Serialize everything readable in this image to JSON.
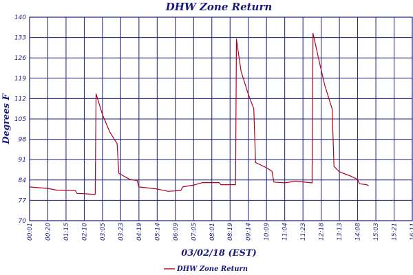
{
  "chart_data": {
    "type": "line",
    "title": "DHW Zone Return",
    "xlabel": "03/02/18 (EST)",
    "ylabel": "Degrees F",
    "ylim": [
      70,
      140
    ],
    "yticks": [
      "70",
      "77",
      "84",
      "91",
      "98",
      "105",
      "112",
      "119",
      "126",
      "133",
      "140"
    ],
    "xticks": [
      "00:01",
      "00:20",
      "01:15",
      "02:10",
      "03:05",
      "03:23",
      "04:19",
      "05:14",
      "06:09",
      "07:05",
      "08:01",
      "08:19",
      "09:14",
      "10:09",
      "11:04",
      "11:23",
      "12:18",
      "13:13",
      "14:08",
      "15:03",
      "15:21",
      "16:11"
    ],
    "grid": true,
    "colors": {
      "series": "#b00020",
      "grid": "#1a1a7a",
      "text": "#1a1a7a"
    },
    "series": [
      {
        "name": "DHW Zone Return",
        "points": [
          [
            0,
            81.6
          ],
          [
            1,
            81.1
          ],
          [
            1.5,
            80.5
          ],
          [
            2.5,
            80.4
          ],
          [
            2.6,
            79.4
          ],
          [
            3.2,
            79.2
          ],
          [
            3.6,
            79.0
          ],
          [
            3.65,
            113.6
          ],
          [
            4.0,
            106.5
          ],
          [
            4.4,
            100.5
          ],
          [
            4.8,
            96.5
          ],
          [
            4.9,
            86.3
          ],
          [
            5.5,
            84.2
          ],
          [
            5.9,
            83.8
          ],
          [
            6.0,
            81.6
          ],
          [
            7.0,
            80.9
          ],
          [
            7.6,
            80.1
          ],
          [
            8.3,
            80.4
          ],
          [
            8.4,
            81.6
          ],
          [
            9.1,
            82.4
          ],
          [
            9.5,
            83.1
          ],
          [
            10.4,
            83.1
          ],
          [
            10.5,
            82.4
          ],
          [
            11.3,
            82.4
          ],
          [
            11.35,
            132.5
          ],
          [
            11.6,
            121.5
          ],
          [
            12.0,
            113.5
          ],
          [
            12.3,
            108.5
          ],
          [
            12.4,
            90.0
          ],
          [
            13.0,
            88.2
          ],
          [
            13.3,
            87.0
          ],
          [
            13.4,
            83.3
          ],
          [
            14.0,
            83.0
          ],
          [
            14.6,
            83.6
          ],
          [
            15.5,
            83.0
          ],
          [
            15.55,
            134.5
          ],
          [
            15.9,
            124.5
          ],
          [
            16.2,
            116.5
          ],
          [
            16.6,
            108.5
          ],
          [
            16.7,
            88.7
          ],
          [
            17.0,
            86.8
          ],
          [
            17.6,
            85.4
          ],
          [
            18.0,
            84.2
          ],
          [
            18.1,
            82.7
          ],
          [
            18.5,
            82.4
          ],
          [
            18.6,
            82.0
          ]
        ]
      }
    ],
    "legend": {
      "position": "bottom-center"
    }
  }
}
